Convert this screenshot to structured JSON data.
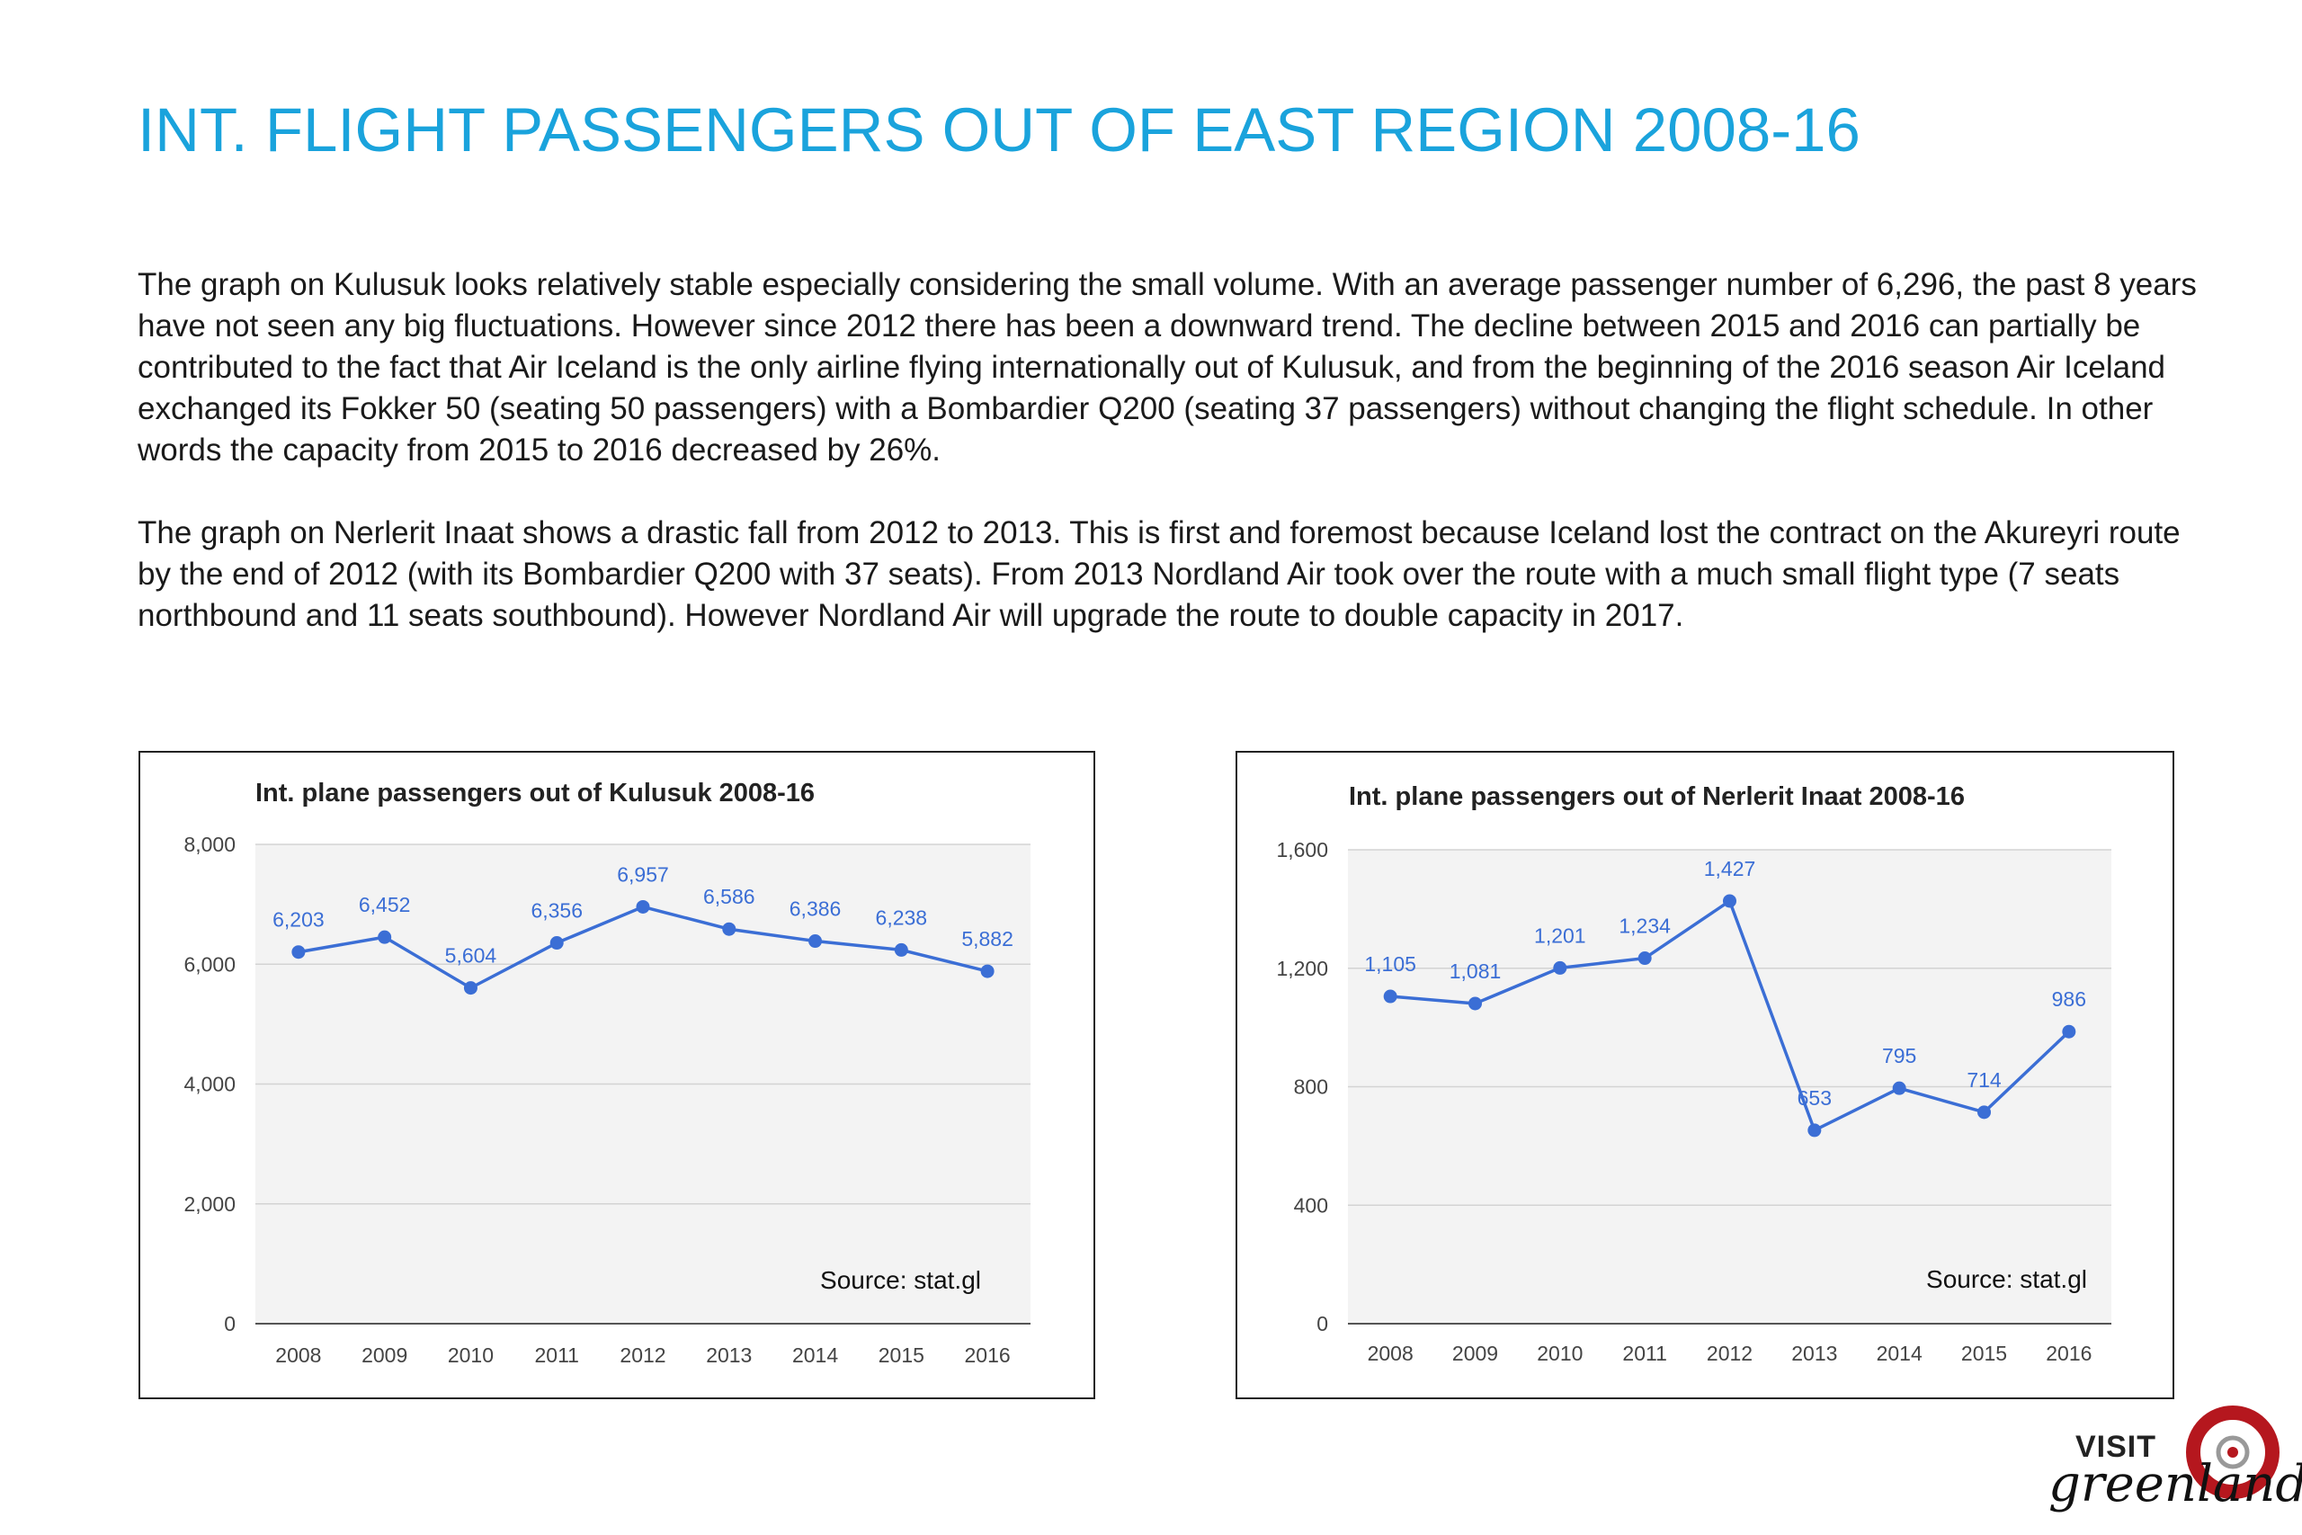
{
  "title": "INT. FLIGHT PASSENGERS OUT OF EAST REGION 2008-16",
  "paragraphs": [
    "The graph on Kulusuk looks relatively stable especially considering the small volume. With an average passenger number of 6,296, the past 8 years have not seen any big fluctuations. However since 2012 there has been a downward trend. The decline between 2015 and 2016 can partially be contributed to the fact that Air Iceland is the only airline flying internationally out of Kulusuk, and from the beginning of the 2016 season Air Iceland exchanged its Fokker 50 (seating 50 passengers) with a Bombardier Q200 (seating 37 passengers) without changing the flight schedule. In other words the capacity from 2015 to 2016 decreased by 26%.",
    "The graph on Nerlerit Inaat shows a drastic fall from 2012 to 2013. This is first and foremost because Iceland lost the contract on the Akureyri route by the end of 2012 (with its Bombardier Q200 with 37 seats). From 2013 Nordland Air took over the route with a much small flight type (7 seats northbound and 11 seats southbound). However Nordland Air will upgrade the route to double capacity in 2017."
  ],
  "chart_data": [
    {
      "type": "line",
      "title": "Int. plane passengers out of Kulusuk 2008-16",
      "categories": [
        "2008",
        "2009",
        "2010",
        "2011",
        "2012",
        "2013",
        "2014",
        "2015",
        "2016"
      ],
      "values": [
        6203,
        6452,
        5604,
        6356,
        6957,
        6586,
        6386,
        6238,
        5882
      ],
      "value_labels": [
        "6,203",
        "6,452",
        "5,604",
        "6,356",
        "6,957",
        "6,586",
        "6,386",
        "6,238",
        "5,882"
      ],
      "yticks": [
        0,
        2000,
        4000,
        6000,
        8000
      ],
      "ytick_labels": [
        "0",
        "2,000",
        "4,000",
        "6,000",
        "8,000"
      ],
      "ylim": [
        0,
        8000
      ],
      "source": "Source: stat.gl",
      "color": "#3b6ed5",
      "grid": true,
      "legend": "none"
    },
    {
      "type": "line",
      "title": "Int. plane passengers out of Nerlerit Inaat 2008-16",
      "categories": [
        "2008",
        "2009",
        "2010",
        "2011",
        "2012",
        "2013",
        "2014",
        "2015",
        "2016"
      ],
      "values": [
        1105,
        1081,
        1201,
        1234,
        1427,
        653,
        795,
        714,
        986
      ],
      "value_labels": [
        "1,105",
        "1,081",
        "1,201",
        "1,234",
        "1,427",
        "653",
        "795",
        "714",
        "986"
      ],
      "yticks": [
        0,
        400,
        800,
        1200,
        1600
      ],
      "ytick_labels": [
        "0",
        "400",
        "800",
        "1,200",
        "1,600"
      ],
      "ylim": [
        0,
        1600
      ],
      "source": "Source: stat.gl",
      "color": "#3b6ed5",
      "grid": true,
      "legend": "none"
    }
  ],
  "logo": {
    "visit": "VISIT",
    "word": "greenland",
    "color": "#b5171e"
  }
}
